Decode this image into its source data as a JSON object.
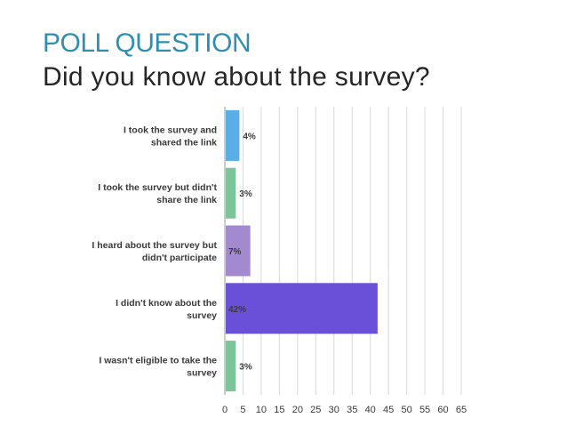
{
  "slide": {
    "label": "POLL QUESTION",
    "question": "Did you know about the survey?"
  },
  "chart_data": {
    "type": "bar",
    "orientation": "horizontal",
    "categories": [
      [
        "I took the survey and",
        "shared the link"
      ],
      [
        "I took the survey but didn't",
        "share the link"
      ],
      [
        "I heard about the survey but",
        "didn't participate"
      ],
      [
        "I didn't know about the",
        "survey"
      ],
      [
        "I wasn't eligible to take the",
        "survey"
      ]
    ],
    "values": [
      4,
      3,
      7,
      42,
      3
    ],
    "data_labels": [
      "4%",
      "3%",
      "7%",
      "42%",
      "3%"
    ],
    "colors": [
      "#5aaee6",
      "#7cc49a",
      "#a38ad0",
      "#6a4fd9",
      "#7cc49a"
    ],
    "xlim": [
      0,
      65
    ],
    "xticks": [
      0,
      5,
      10,
      15,
      20,
      25,
      30,
      35,
      40,
      45,
      50,
      55,
      60,
      65
    ],
    "grid": true,
    "legend": "none"
  }
}
